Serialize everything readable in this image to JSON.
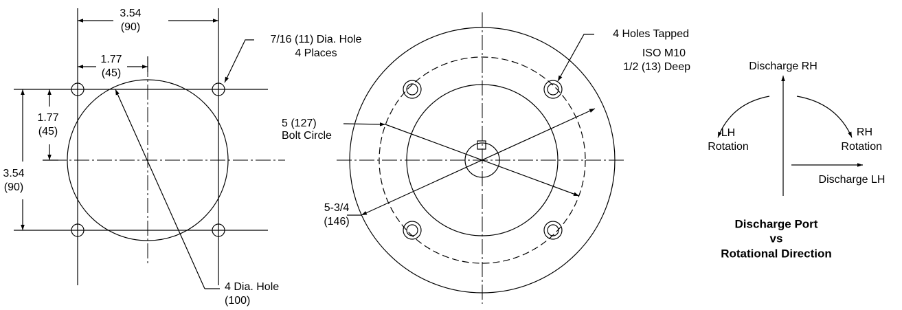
{
  "left_view": {
    "overall_width": [
      "3.54",
      "(90)"
    ],
    "half_width": [
      "1.77",
      "(45)"
    ],
    "hole_note": [
      "7/16 (11) Dia. Hole",
      "4 Places"
    ],
    "half_height": [
      "1.77",
      "(45)"
    ],
    "overall_height": [
      "3.54",
      "(90)"
    ],
    "diameter_note": [
      "4 Dia. Hole",
      "(100)"
    ]
  },
  "middle_view": {
    "tapped_note": [
      "4 Holes Tapped",
      "ISO M10",
      "1/2 (13) Deep"
    ],
    "bolt_circle": [
      "5 (127)",
      "Bolt Circle"
    ],
    "outer_diameter": [
      "5-3/4",
      "(146)"
    ]
  },
  "rotation_view": {
    "discharge_rh": "Discharge RH",
    "lh_rotation": [
      "LH",
      "Rotation"
    ],
    "rh_rotation": [
      "RH",
      "Rotation"
    ],
    "discharge_lh": "Discharge LH",
    "title": [
      "Discharge Port",
      "vs",
      "Rotational Direction"
    ]
  }
}
